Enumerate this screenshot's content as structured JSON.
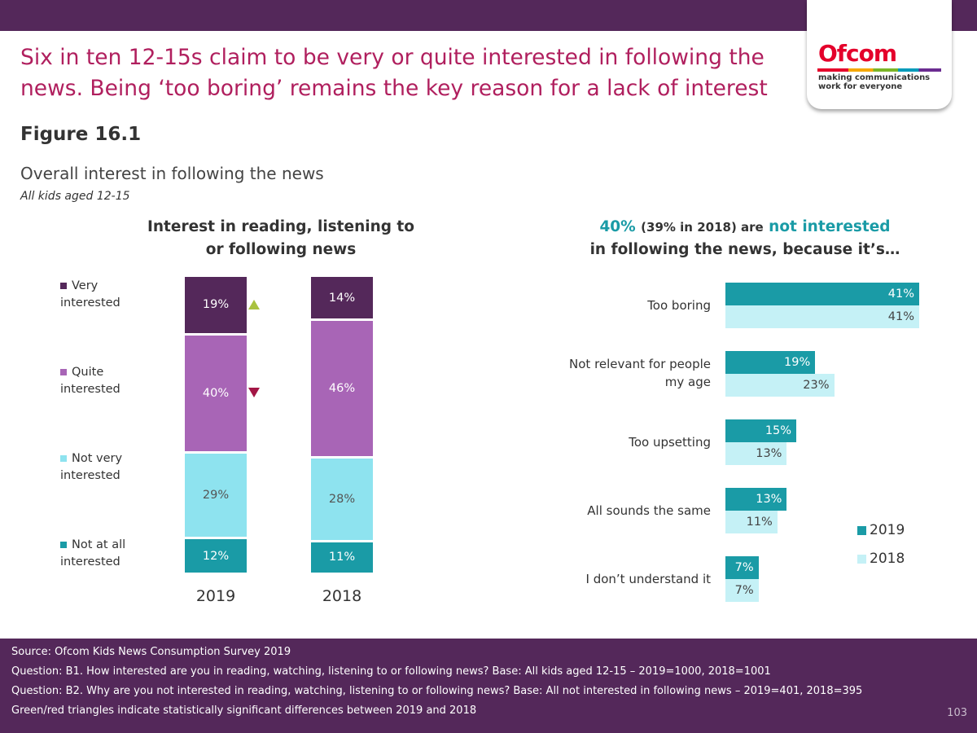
{
  "header": {
    "title": "Six in ten 12-15s claim to be very or quite interested in following the news. Being ‘too boring’ remains the key reason for a lack of interest",
    "figure": "Figure 16.1",
    "subtitle": "Overall interest in following the news",
    "base": "All kids aged 12-15"
  },
  "logo": {
    "word": "Ofcom",
    "tagline": "making communications work for everyone"
  },
  "colors": {
    "very": "#54285a",
    "quite": "#a865b6",
    "not_very": "#8ee3ef",
    "not_at_all": "#1a9ba6",
    "bar2019": "#1a9ba6",
    "bar2018": "#c5f1f6",
    "sig_up": "#a9c23f",
    "sig_down": "#a31645"
  },
  "chart_data": [
    {
      "type": "bar",
      "stacked": true,
      "title": "Interest in reading, listening to or following news",
      "categories": [
        "2019",
        "2018"
      ],
      "series": [
        {
          "name": "Not at all interested",
          "values": [
            12,
            11
          ],
          "labels": [
            "12%",
            "11%"
          ]
        },
        {
          "name": "Not very interested",
          "values": [
            29,
            28
          ],
          "labels": [
            "29%",
            "28%"
          ]
        },
        {
          "name": "Quite interested",
          "values": [
            40,
            46
          ],
          "labels": [
            "40%",
            "46%"
          ]
        },
        {
          "name": "Very interested",
          "values": [
            19,
            14
          ],
          "labels": [
            "19%",
            "14%"
          ]
        }
      ],
      "significance": [
        {
          "series": "Very interested",
          "category": "2019",
          "direction": "up"
        },
        {
          "series": "Quite interested",
          "category": "2019",
          "direction": "down"
        }
      ]
    },
    {
      "type": "bar",
      "orientation": "horizontal",
      "title_parts": [
        "40%",
        "(39% in 2018) are",
        "not interested",
        "in following the news, because it’s…"
      ],
      "categories": [
        "Too boring",
        "Not relevant for people my age",
        "Too upsetting",
        "All sounds the same",
        "I don’t understand it"
      ],
      "series": [
        {
          "name": "2019",
          "values": [
            41,
            19,
            15,
            13,
            7
          ],
          "labels": [
            "41%",
            "19%",
            "15%",
            "13%",
            "7%"
          ]
        },
        {
          "name": "2018",
          "values": [
            41,
            23,
            13,
            11,
            7
          ],
          "labels": [
            "41%",
            "23%",
            "13%",
            "11%",
            "7%"
          ]
        }
      ],
      "legend": "right"
    }
  ],
  "footer": {
    "source": "Source: Ofcom Kids News Consumption Survey 2019",
    "q1": "Question: B1. How interested are you in reading, watching, listening to or following news? Base: All kids aged 12-15 – 2019=1000, 2018=1001",
    "q2": "Question: B2. Why are you not interested in reading, watching, listening to or following news? Base: All not interested in following news – 2019=401, 2018=395",
    "note": "Green/red triangles indicate statistically significant differences between 2019 and 2018",
    "page": "103"
  }
}
